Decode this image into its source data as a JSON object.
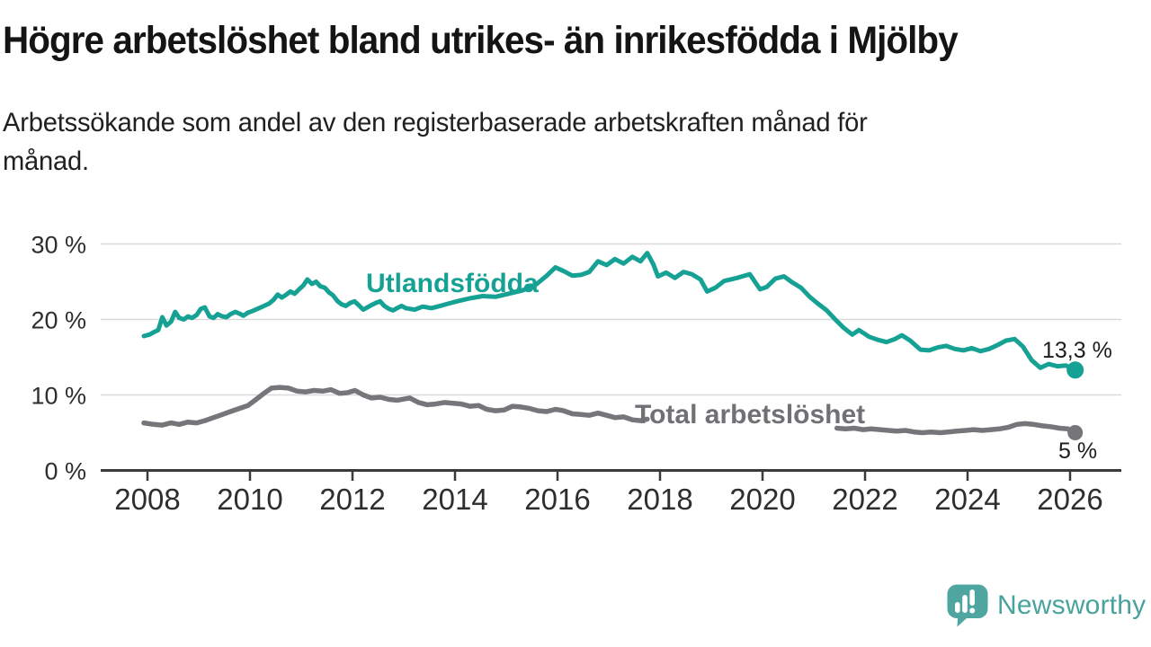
{
  "header": {
    "title": "Högre arbetslöshet bland utrikes- än inrikesfödda i Mjölby",
    "subtitle_lines": [
      "Arbetssökande som andel av den registerbaserade arbetskraften månad för",
      "månad."
    ]
  },
  "colors": {
    "series_teal": "#16a195",
    "series_gray": "#76767a",
    "grid": "#d9d9d9",
    "axis": "#3a3a3a",
    "tick_text": "#2e2e2e",
    "title_text": "#141414",
    "end_label_text": "#1c1c1c",
    "logo_teal": "#4fa6a1"
  },
  "chart_data": {
    "type": "line",
    "title": "Högre arbetslöshet bland utrikes- än inrikesfödda i Mjölby",
    "subtitle": "Arbetssökande som andel av den registerbaserade arbetskraften månad för månad.",
    "xlabel": "",
    "ylabel": "",
    "ylim": [
      0,
      30
    ],
    "xlim": [
      2007.1,
      2027.0
    ],
    "grid": "horizontal",
    "legend": "inline-labels",
    "y_ticks": [
      {
        "v": 30,
        "label": "30 %"
      },
      {
        "v": 20,
        "label": "20 %"
      },
      {
        "v": 10,
        "label": "10 %"
      },
      {
        "v": 0,
        "label": "0 %"
      }
    ],
    "x_ticks": [
      {
        "v": 2008,
        "label": "2008"
      },
      {
        "v": 2010,
        "label": "2010"
      },
      {
        "v": 2012,
        "label": "2012"
      },
      {
        "v": 2014,
        "label": "2014"
      },
      {
        "v": 2016,
        "label": "2016"
      },
      {
        "v": 2018,
        "label": "2018"
      },
      {
        "v": 2020,
        "label": "2020"
      },
      {
        "v": 2022,
        "label": "2022"
      },
      {
        "v": 2024,
        "label": "2024"
      },
      {
        "v": 2026,
        "label": "2026"
      }
    ],
    "series": [
      {
        "name": "Utlandsfödda",
        "color": "#16a195",
        "end_label": "13,3 %",
        "end_value": 13.3,
        "segments": [
          [
            [
              2007.93,
              17.8
            ],
            [
              2008.04,
              18.0
            ],
            [
              2008.12,
              18.3
            ],
            [
              2008.21,
              18.6
            ],
            [
              2008.29,
              20.3
            ],
            [
              2008.37,
              19.2
            ],
            [
              2008.46,
              19.7
            ],
            [
              2008.54,
              21.0
            ],
            [
              2008.62,
              20.2
            ],
            [
              2008.71,
              20.0
            ],
            [
              2008.79,
              20.4
            ],
            [
              2008.87,
              20.2
            ],
            [
              2008.96,
              20.6
            ],
            [
              2009.04,
              21.4
            ],
            [
              2009.12,
              21.6
            ],
            [
              2009.21,
              20.4
            ],
            [
              2009.29,
              20.2
            ],
            [
              2009.37,
              20.7
            ],
            [
              2009.46,
              20.4
            ],
            [
              2009.54,
              20.3
            ],
            [
              2009.62,
              20.7
            ],
            [
              2009.71,
              21.0
            ],
            [
              2009.79,
              20.8
            ],
            [
              2009.87,
              20.5
            ],
            [
              2009.96,
              20.9
            ],
            [
              2010.04,
              21.1
            ],
            [
              2010.21,
              21.6
            ],
            [
              2010.37,
              22.1
            ],
            [
              2010.46,
              22.6
            ],
            [
              2010.54,
              23.3
            ],
            [
              2010.62,
              22.9
            ],
            [
              2010.71,
              23.3
            ],
            [
              2010.79,
              23.7
            ],
            [
              2010.87,
              23.4
            ],
            [
              2010.96,
              24.0
            ],
            [
              2011.04,
              24.5
            ],
            [
              2011.12,
              25.3
            ],
            [
              2011.21,
              24.7
            ],
            [
              2011.29,
              25.0
            ],
            [
              2011.37,
              24.4
            ],
            [
              2011.46,
              24.2
            ],
            [
              2011.54,
              23.6
            ],
            [
              2011.62,
              23.2
            ],
            [
              2011.71,
              22.4
            ],
            [
              2011.79,
              22.0
            ],
            [
              2011.87,
              21.8
            ],
            [
              2011.96,
              22.2
            ],
            [
              2012.04,
              22.4
            ],
            [
              2012.12,
              21.9
            ],
            [
              2012.21,
              21.3
            ],
            [
              2012.29,
              21.6
            ],
            [
              2012.37,
              21.9
            ],
            [
              2012.46,
              22.2
            ],
            [
              2012.54,
              22.4
            ],
            [
              2012.62,
              21.8
            ],
            [
              2012.71,
              21.4
            ],
            [
              2012.79,
              21.2
            ],
            [
              2012.87,
              21.5
            ],
            [
              2012.96,
              21.8
            ],
            [
              2013.04,
              21.5
            ],
            [
              2013.21,
              21.3
            ],
            [
              2013.37,
              21.7
            ],
            [
              2013.54,
              21.5
            ],
            [
              2013.71,
              21.8
            ],
            [
              2013.87,
              22.1
            ],
            [
              2014.04,
              22.4
            ],
            [
              2014.29,
              22.8
            ],
            [
              2014.54,
              23.1
            ],
            [
              2014.79,
              23.0
            ],
            [
              2015.04,
              23.4
            ],
            [
              2015.29,
              23.8
            ],
            [
              2015.54,
              24.4
            ],
            [
              2015.79,
              25.8
            ],
            [
              2015.96,
              26.9
            ],
            [
              2016.12,
              26.4
            ],
            [
              2016.29,
              25.8
            ],
            [
              2016.46,
              25.9
            ],
            [
              2016.62,
              26.3
            ],
            [
              2016.79,
              27.7
            ],
            [
              2016.96,
              27.2
            ],
            [
              2017.12,
              28.0
            ],
            [
              2017.29,
              27.4
            ],
            [
              2017.46,
              28.3
            ],
            [
              2017.62,
              27.7
            ],
            [
              2017.75,
              28.8
            ],
            [
              2017.87,
              27.3
            ],
            [
              2017.96,
              25.7
            ],
            [
              2018.12,
              26.2
            ],
            [
              2018.29,
              25.5
            ],
            [
              2018.46,
              26.3
            ],
            [
              2018.62,
              26.0
            ],
            [
              2018.79,
              25.3
            ],
            [
              2018.92,
              23.7
            ],
            [
              2019.08,
              24.2
            ],
            [
              2019.25,
              25.1
            ],
            [
              2019.5,
              25.5
            ],
            [
              2019.75,
              26.0
            ],
            [
              2019.95,
              24.0
            ],
            [
              2020.08,
              24.3
            ],
            [
              2020.25,
              25.4
            ],
            [
              2020.42,
              25.7
            ],
            [
              2020.58,
              24.9
            ],
            [
              2020.75,
              24.2
            ],
            [
              2020.92,
              23.0
            ],
            [
              2021.08,
              22.1
            ],
            [
              2021.25,
              21.2
            ],
            [
              2021.42,
              20.0
            ],
            [
              2021.58,
              18.9
            ],
            [
              2021.75,
              18.0
            ],
            [
              2021.88,
              18.6
            ],
            [
              2022.08,
              17.7
            ],
            [
              2022.25,
              17.3
            ],
            [
              2022.42,
              17.0
            ],
            [
              2022.58,
              17.4
            ],
            [
              2022.72,
              17.9
            ],
            [
              2022.88,
              17.2
            ],
            [
              2023.08,
              16.0
            ],
            [
              2023.25,
              15.9
            ],
            [
              2023.42,
              16.3
            ],
            [
              2023.58,
              16.5
            ],
            [
              2023.75,
              16.1
            ],
            [
              2023.92,
              15.9
            ],
            [
              2024.08,
              16.2
            ],
            [
              2024.25,
              15.8
            ],
            [
              2024.42,
              16.1
            ],
            [
              2024.58,
              16.6
            ],
            [
              2024.75,
              17.2
            ],
            [
              2024.92,
              17.4
            ],
            [
              2025.08,
              16.4
            ],
            [
              2025.25,
              14.6
            ],
            [
              2025.42,
              13.6
            ],
            [
              2025.58,
              14.1
            ],
            [
              2025.75,
              13.8
            ],
            [
              2025.92,
              13.9
            ],
            [
              2026.1,
              13.3
            ]
          ]
        ]
      },
      {
        "name": "Total arbetslöshet",
        "color": "#76767a",
        "end_label": "5 %",
        "end_value": 5.0,
        "segments": [
          [
            [
              2007.93,
              6.3
            ],
            [
              2008.12,
              6.1
            ],
            [
              2008.29,
              6.0
            ],
            [
              2008.46,
              6.3
            ],
            [
              2008.62,
              6.1
            ],
            [
              2008.79,
              6.4
            ],
            [
              2008.96,
              6.3
            ],
            [
              2009.12,
              6.6
            ],
            [
              2009.29,
              7.0
            ],
            [
              2009.46,
              7.4
            ],
            [
              2009.62,
              7.8
            ],
            [
              2009.79,
              8.2
            ],
            [
              2009.96,
              8.6
            ],
            [
              2010.12,
              9.4
            ],
            [
              2010.29,
              10.3
            ],
            [
              2010.42,
              10.9
            ],
            [
              2010.58,
              11.0
            ],
            [
              2010.75,
              10.9
            ],
            [
              2010.92,
              10.5
            ],
            [
              2011.08,
              10.4
            ],
            [
              2011.25,
              10.6
            ],
            [
              2011.42,
              10.5
            ],
            [
              2011.58,
              10.7
            ],
            [
              2011.75,
              10.2
            ],
            [
              2011.9,
              10.3
            ],
            [
              2012.05,
              10.6
            ],
            [
              2012.21,
              10.0
            ],
            [
              2012.37,
              9.6
            ],
            [
              2012.54,
              9.7
            ],
            [
              2012.71,
              9.4
            ],
            [
              2012.87,
              9.3
            ],
            [
              2013.04,
              9.5
            ],
            [
              2013.12,
              9.6
            ],
            [
              2013.29,
              9.0
            ],
            [
              2013.46,
              8.7
            ],
            [
              2013.62,
              8.8
            ],
            [
              2013.79,
              9.0
            ],
            [
              2013.96,
              8.9
            ],
            [
              2014.12,
              8.8
            ],
            [
              2014.29,
              8.5
            ],
            [
              2014.46,
              8.6
            ],
            [
              2014.62,
              8.1
            ],
            [
              2014.79,
              7.9
            ],
            [
              2014.96,
              8.0
            ],
            [
              2015.12,
              8.5
            ],
            [
              2015.29,
              8.4
            ],
            [
              2015.46,
              8.2
            ],
            [
              2015.62,
              7.9
            ],
            [
              2015.79,
              7.8
            ],
            [
              2015.96,
              8.1
            ],
            [
              2016.12,
              7.9
            ],
            [
              2016.29,
              7.5
            ],
            [
              2016.46,
              7.4
            ],
            [
              2016.62,
              7.3
            ],
            [
              2016.79,
              7.6
            ],
            [
              2016.96,
              7.3
            ],
            [
              2017.12,
              7.0
            ],
            [
              2017.29,
              7.1
            ],
            [
              2017.46,
              6.7
            ],
            [
              2017.62,
              6.6
            ],
            [
              2017.75,
              6.8
            ]
          ],
          [
            [
              2021.45,
              5.6
            ],
            [
              2021.62,
              5.5
            ],
            [
              2021.79,
              5.6
            ],
            [
              2021.96,
              5.4
            ],
            [
              2022.12,
              5.5
            ],
            [
              2022.29,
              5.4
            ],
            [
              2022.46,
              5.3
            ],
            [
              2022.62,
              5.2
            ],
            [
              2022.79,
              5.3
            ],
            [
              2022.96,
              5.1
            ],
            [
              2023.12,
              5.0
            ],
            [
              2023.29,
              5.1
            ],
            [
              2023.46,
              5.0
            ],
            [
              2023.62,
              5.1
            ],
            [
              2023.79,
              5.2
            ],
            [
              2023.96,
              5.3
            ],
            [
              2024.12,
              5.4
            ],
            [
              2024.29,
              5.3
            ],
            [
              2024.46,
              5.4
            ],
            [
              2024.62,
              5.5
            ],
            [
              2024.79,
              5.7
            ],
            [
              2024.96,
              6.1
            ],
            [
              2025.12,
              6.2
            ],
            [
              2025.29,
              6.1
            ],
            [
              2025.46,
              5.9
            ],
            [
              2025.62,
              5.8
            ],
            [
              2025.79,
              5.6
            ],
            [
              2025.96,
              5.5
            ],
            [
              2026.1,
              5.0
            ]
          ]
        ]
      }
    ]
  },
  "footer": {
    "logo_text": "Newsworthy"
  }
}
